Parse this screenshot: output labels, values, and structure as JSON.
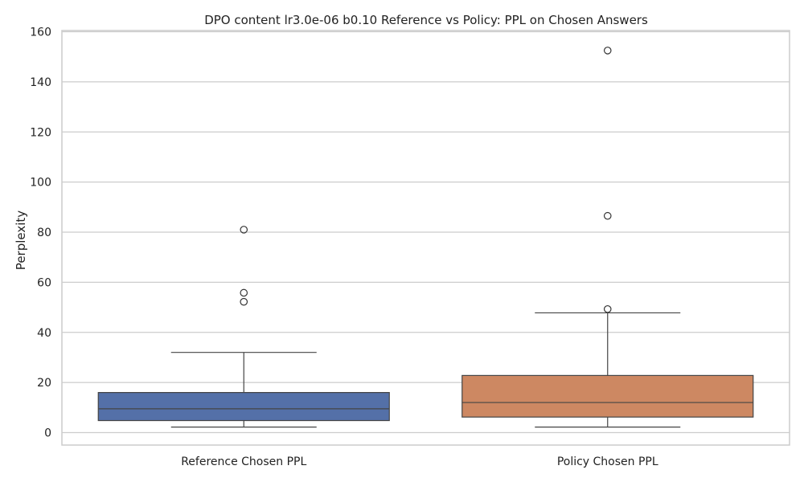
{
  "chart_data": {
    "type": "box",
    "title": "DPO content lr3.0e-06 b0.10 Reference vs Policy: PPL on Chosen Answers",
    "xlabel": "",
    "ylabel": "Perplexity",
    "ylim": [
      -5,
      160
    ],
    "yticks": [
      0,
      20,
      40,
      60,
      80,
      100,
      120,
      140,
      160
    ],
    "grid": "horizontal",
    "categories": [
      "Reference Chosen PPL",
      "Policy Chosen PPL"
    ],
    "series": [
      {
        "category": "Reference Chosen PPL",
        "color": "#5470a8",
        "whisker_low": 2.2,
        "q1": 4.8,
        "median": 9.5,
        "q3": 16,
        "whisker_high": 32,
        "outliers": [
          52.2,
          55.8,
          81
        ]
      },
      {
        "category": "Policy Chosen PPL",
        "color": "#cd8862",
        "whisker_low": 2.2,
        "q1": 6.2,
        "median": 12,
        "q3": 22.8,
        "whisker_high": 47.8,
        "outliers": [
          49.3,
          86.5,
          152.5
        ]
      }
    ]
  }
}
